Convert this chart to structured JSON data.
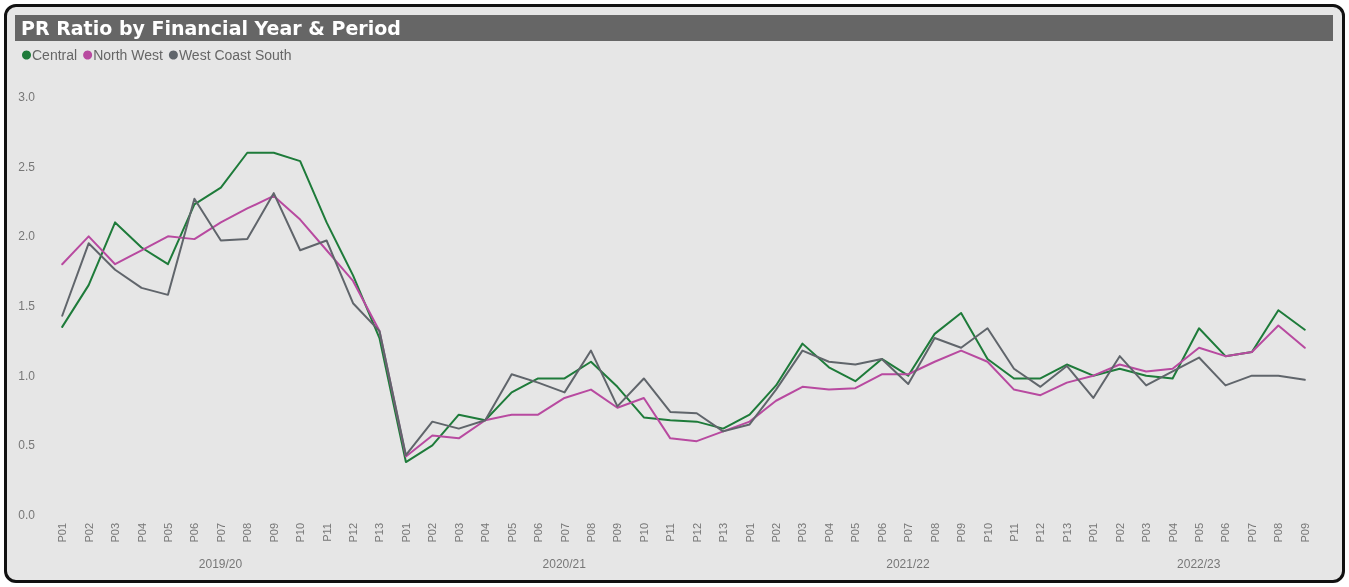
{
  "chart_data": {
    "type": "line",
    "title": "PR Ratio by Financial Year & Period",
    "categories": [
      "P01",
      "P02",
      "P03",
      "P04",
      "P05",
      "P06",
      "P07",
      "P08",
      "P09",
      "P10",
      "P11",
      "P12",
      "P13",
      "P01",
      "P02",
      "P03",
      "P04",
      "P05",
      "P06",
      "P07",
      "P08",
      "P09",
      "P10",
      "P11",
      "P12",
      "P13",
      "P01",
      "P02",
      "P03",
      "P04",
      "P05",
      "P06",
      "P07",
      "P08",
      "P09",
      "P10",
      "P11",
      "P12",
      "P13",
      "P01",
      "P02",
      "P03",
      "P04",
      "P05",
      "P06",
      "P07",
      "P08",
      "P09"
    ],
    "annotations": [
      "2019/20",
      "2020/21",
      "2021/22",
      "2022/23"
    ],
    "series": [
      {
        "name": "Central",
        "color": "#1e7b3a",
        "values": [
          1.35,
          1.65,
          2.1,
          1.92,
          1.8,
          2.23,
          2.35,
          2.6,
          2.6,
          2.54,
          2.1,
          1.72,
          1.27,
          0.38,
          0.5,
          0.72,
          0.68,
          0.88,
          0.98,
          0.98,
          1.1,
          0.92,
          0.7,
          0.68,
          0.67,
          0.62,
          0.72,
          0.93,
          1.23,
          1.06,
          0.96,
          1.12,
          1.0,
          1.3,
          1.45,
          1.12,
          0.98,
          0.98,
          1.08,
          1.0,
          1.05,
          1.0,
          0.98,
          1.34,
          1.14,
          1.17,
          1.47,
          1.33
        ]
      },
      {
        "name": "North West",
        "color": "#b84aa0",
        "values": [
          1.8,
          2.0,
          1.8,
          1.9,
          2.0,
          1.98,
          2.1,
          2.2,
          2.29,
          2.12,
          1.9,
          1.68,
          1.32,
          0.42,
          0.57,
          0.55,
          0.68,
          0.72,
          0.72,
          0.84,
          0.9,
          0.77,
          0.84,
          0.55,
          0.53,
          0.6,
          0.67,
          0.82,
          0.92,
          0.9,
          0.91,
          1.01,
          1.01,
          1.1,
          1.18,
          1.1,
          0.9,
          0.86,
          0.95,
          1.0,
          1.08,
          1.03,
          1.05,
          1.2,
          1.14,
          1.17,
          1.36,
          1.2
        ]
      },
      {
        "name": "West Coast South",
        "color": "#60656b",
        "values": [
          1.43,
          1.95,
          1.76,
          1.63,
          1.58,
          2.27,
          1.97,
          1.98,
          2.31,
          1.9,
          1.97,
          1.52,
          1.32,
          0.43,
          0.67,
          0.62,
          0.68,
          1.01,
          0.95,
          0.88,
          1.18,
          0.78,
          0.98,
          0.74,
          0.73,
          0.6,
          0.65,
          0.9,
          1.18,
          1.1,
          1.08,
          1.12,
          0.94,
          1.27,
          1.2,
          1.34,
          1.05,
          0.92,
          1.07,
          0.84,
          1.14,
          0.93,
          1.03,
          1.13,
          0.93,
          1.0,
          1.0,
          0.97
        ]
      }
    ],
    "ylim": [
      0,
      3
    ],
    "yticks": [
      {
        "value": 0,
        "label": "0.0"
      },
      {
        "value": 0.5,
        "label": "0.5"
      },
      {
        "value": 1,
        "label": "1.0"
      },
      {
        "value": 1.5,
        "label": "1.5"
      },
      {
        "value": 2,
        "label": "2.0"
      },
      {
        "value": 2.5,
        "label": "2.5"
      },
      {
        "value": 3,
        "label": "3.0"
      }
    ],
    "grid": false,
    "legend": "top left",
    "marker": "none",
    "line_style": "solid"
  }
}
